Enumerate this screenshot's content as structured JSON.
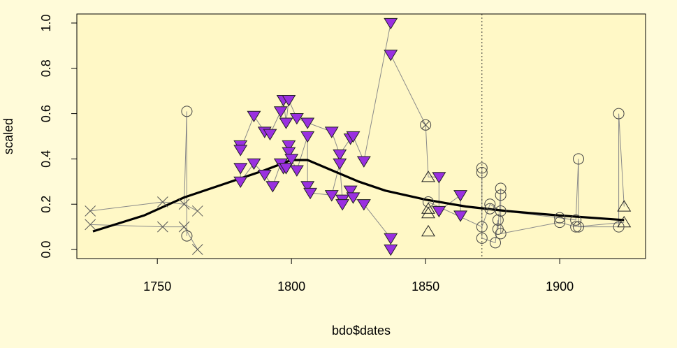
{
  "chart_data": {
    "type": "scatter",
    "xlabel": "bdo$dates",
    "ylabel": "scaled",
    "xlim": [
      1720,
      1932
    ],
    "ylim": [
      -0.04,
      1.04
    ],
    "x_ticks": [
      1750,
      1800,
      1850,
      1900
    ],
    "y_ticks": [
      0.0,
      0.2,
      0.4,
      0.6,
      0.8,
      1.0
    ],
    "x_tick_labels": [
      "1750",
      "1800",
      "1850",
      "1900"
    ],
    "y_tick_labels": [
      "0.0",
      "0.2",
      "0.4",
      "0.6",
      "0.8",
      "1.0"
    ],
    "vline_x": 1871,
    "grid": false,
    "colors": {
      "background": "#FFFBD9",
      "plot_background": "#FFF8C6",
      "triangle_fill": "#9A30E0",
      "connector": "#8A8A8A",
      "smooth": "#000000"
    },
    "connector_order": [
      "cross_series",
      "circle_series",
      "triangle_down_series",
      "circle_series_late"
    ],
    "series": [
      {
        "marker": "cross",
        "points": [
          [
            1725,
            0.17
          ],
          [
            1725,
            0.11
          ],
          [
            1752,
            0.21
          ],
          [
            1752,
            0.1
          ],
          [
            1760,
            0.2
          ],
          [
            1760,
            0.1
          ],
          [
            1765,
            0.17
          ],
          [
            1765,
            0.0
          ]
        ]
      },
      {
        "marker": "circle",
        "points": [
          [
            1761,
            0.61
          ],
          [
            1761,
            0.06
          ]
        ]
      },
      {
        "marker": "triangle-down",
        "points": [
          [
            1781,
            0.46
          ],
          [
            1781,
            0.44
          ],
          [
            1781,
            0.36
          ],
          [
            1781,
            0.3
          ],
          [
            1786,
            0.59
          ],
          [
            1786,
            0.38
          ],
          [
            1790,
            0.52
          ],
          [
            1790,
            0.33
          ],
          [
            1792,
            0.51
          ],
          [
            1793,
            0.28
          ],
          [
            1796,
            0.61
          ],
          [
            1796,
            0.38
          ],
          [
            1797,
            0.66
          ],
          [
            1797,
            0.36
          ],
          [
            1798,
            0.56
          ],
          [
            1798,
            0.36
          ],
          [
            1799,
            0.66
          ],
          [
            1799,
            0.46
          ],
          [
            1799,
            0.43
          ],
          [
            1800,
            0.4
          ],
          [
            1802,
            0.58
          ],
          [
            1802,
            0.35
          ],
          [
            1806,
            0.56
          ],
          [
            1806,
            0.5
          ],
          [
            1806,
            0.28
          ],
          [
            1807,
            0.25
          ],
          [
            1815,
            0.52
          ],
          [
            1815,
            0.24
          ],
          [
            1818,
            0.42
          ],
          [
            1818,
            0.38
          ],
          [
            1819,
            0.22
          ],
          [
            1819,
            0.2
          ],
          [
            1822,
            0.49
          ],
          [
            1822,
            0.26
          ],
          [
            1823,
            0.5
          ],
          [
            1823,
            0.23
          ],
          [
            1827,
            0.39
          ],
          [
            1827,
            0.2
          ],
          [
            1837,
            1.0
          ],
          [
            1837,
            0.86
          ],
          [
            1837,
            0.05
          ],
          [
            1837,
            0.0
          ],
          [
            1855,
            0.32
          ],
          [
            1855,
            0.17
          ],
          [
            1863,
            0.24
          ],
          [
            1863,
            0.15
          ]
        ]
      },
      {
        "marker": "circle-x",
        "points": [
          [
            1850,
            0.55
          ]
        ]
      },
      {
        "marker": "triangle-up",
        "points": [
          [
            1851,
            0.32
          ],
          [
            1851,
            0.18
          ],
          [
            1851,
            0.16
          ],
          [
            1851,
            0.08
          ],
          [
            1924,
            0.19
          ],
          [
            1924,
            0.12
          ]
        ]
      },
      {
        "marker": "circle",
        "points": [
          [
            1851,
            0.21
          ],
          [
            1871,
            0.36
          ],
          [
            1871,
            0.34
          ],
          [
            1871,
            0.1
          ],
          [
            1871,
            0.05
          ],
          [
            1874,
            0.2
          ],
          [
            1874,
            0.18
          ],
          [
            1876,
            0.03
          ],
          [
            1877,
            0.13
          ],
          [
            1877,
            0.09
          ],
          [
            1878,
            0.27
          ],
          [
            1878,
            0.24
          ],
          [
            1878,
            0.17
          ],
          [
            1878,
            0.07
          ],
          [
            1900,
            0.14
          ],
          [
            1900,
            0.12
          ],
          [
            1906,
            0.13
          ],
          [
            1906,
            0.1
          ],
          [
            1907,
            0.4
          ],
          [
            1907,
            0.1
          ],
          [
            1922,
            0.6
          ],
          [
            1922,
            0.1
          ]
        ]
      }
    ],
    "connectors": [
      [
        [
          1725,
          0.17
        ],
        [
          1752,
          0.21
        ],
        [
          1760,
          0.2
        ],
        [
          1765,
          0.17
        ]
      ],
      [
        [
          1725,
          0.11
        ],
        [
          1752,
          0.1
        ],
        [
          1760,
          0.1
        ],
        [
          1765,
          0.0
        ]
      ],
      [
        [
          1760,
          0.2
        ],
        [
          1761,
          0.61
        ],
        [
          1761,
          0.06
        ]
      ],
      [
        [
          1781,
          0.46
        ],
        [
          1781,
          0.44
        ],
        [
          1786,
          0.59
        ],
        [
          1790,
          0.52
        ],
        [
          1792,
          0.51
        ],
        [
          1796,
          0.61
        ],
        [
          1797,
          0.66
        ],
        [
          1798,
          0.56
        ],
        [
          1799,
          0.66
        ],
        [
          1802,
          0.58
        ],
        [
          1806,
          0.56
        ],
        [
          1815,
          0.52
        ],
        [
          1818,
          0.42
        ],
        [
          1822,
          0.49
        ],
        [
          1823,
          0.5
        ],
        [
          1827,
          0.39
        ],
        [
          1837,
          1.0
        ]
      ],
      [
        [
          1781,
          0.36
        ],
        [
          1781,
          0.3
        ],
        [
          1786,
          0.38
        ],
        [
          1790,
          0.33
        ],
        [
          1793,
          0.28
        ],
        [
          1796,
          0.38
        ],
        [
          1797,
          0.36
        ],
        [
          1798,
          0.36
        ],
        [
          1799,
          0.46
        ],
        [
          1799,
          0.43
        ],
        [
          1800,
          0.4
        ],
        [
          1802,
          0.35
        ],
        [
          1806,
          0.5
        ],
        [
          1806,
          0.28
        ],
        [
          1807,
          0.25
        ],
        [
          1815,
          0.24
        ],
        [
          1818,
          0.38
        ],
        [
          1819,
          0.22
        ],
        [
          1819,
          0.2
        ],
        [
          1822,
          0.26
        ],
        [
          1823,
          0.23
        ],
        [
          1827,
          0.2
        ],
        [
          1837,
          0.05
        ],
        [
          1837,
          0.0
        ]
      ],
      [
        [
          1837,
          0.86
        ],
        [
          1850,
          0.55
        ],
        [
          1851,
          0.32
        ],
        [
          1855,
          0.32
        ],
        [
          1855,
          0.17
        ],
        [
          1863,
          0.24
        ],
        [
          1863,
          0.15
        ]
      ],
      [
        [
          1851,
          0.21
        ],
        [
          1871,
          0.1
        ],
        [
          1874,
          0.2
        ],
        [
          1878,
          0.17
        ],
        [
          1900,
          0.14
        ],
        [
          1906,
          0.13
        ],
        [
          1907,
          0.4
        ],
        [
          1907,
          0.1
        ],
        [
          1922,
          0.1
        ],
        [
          1922,
          0.6
        ],
        [
          1924,
          0.19
        ]
      ],
      [
        [
          1871,
          0.36
        ],
        [
          1871,
          0.34
        ],
        [
          1871,
          0.05
        ],
        [
          1876,
          0.03
        ],
        [
          1877,
          0.13
        ],
        [
          1877,
          0.09
        ],
        [
          1878,
          0.27
        ],
        [
          1878,
          0.24
        ],
        [
          1878,
          0.07
        ],
        [
          1900,
          0.12
        ],
        [
          1906,
          0.1
        ],
        [
          1924,
          0.12
        ]
      ]
    ],
    "smooth_line": [
      [
        1726,
        0.08
      ],
      [
        1745,
        0.15
      ],
      [
        1760,
        0.23
      ],
      [
        1775,
        0.29
      ],
      [
        1790,
        0.35
      ],
      [
        1800,
        0.395
      ],
      [
        1806,
        0.395
      ],
      [
        1815,
        0.35
      ],
      [
        1825,
        0.3
      ],
      [
        1835,
        0.26
      ],
      [
        1850,
        0.22
      ],
      [
        1865,
        0.19
      ],
      [
        1880,
        0.17
      ],
      [
        1900,
        0.15
      ],
      [
        1924,
        0.13
      ]
    ]
  }
}
